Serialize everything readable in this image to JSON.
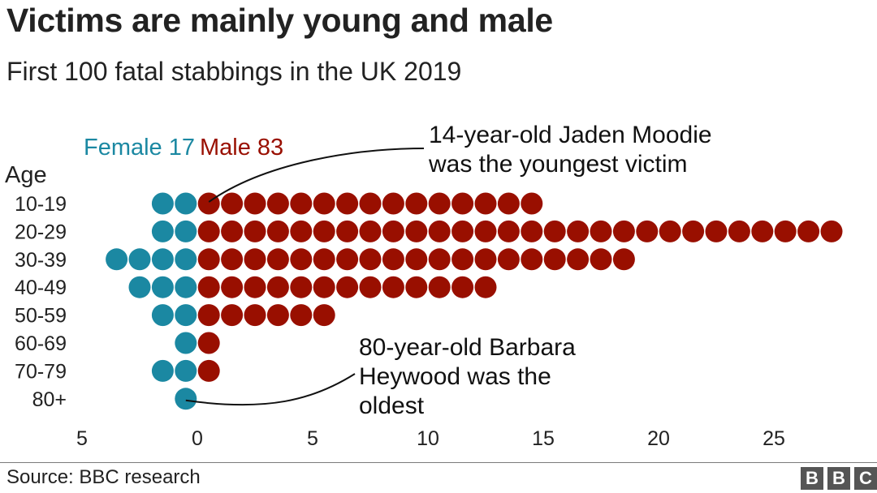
{
  "title": "Victims are mainly young and male",
  "subtitle": "First 100 fatal stabbings in the UK 2019",
  "source": "Source: BBC research",
  "logo": [
    "B",
    "B",
    "C"
  ],
  "colors": {
    "female": "#1b88a2",
    "male": "#990f00",
    "text": "#222222"
  },
  "chart_data": {
    "type": "dot-plot",
    "legend": {
      "female_label": "Female 17",
      "male_label": "Male 83"
    },
    "y_axis_title": "Age",
    "categories": [
      "10-19",
      "20-29",
      "30-39",
      "40-49",
      "50-59",
      "60-69",
      "70-79",
      "80+"
    ],
    "series": [
      {
        "name": "Female",
        "values": [
          2,
          2,
          4,
          3,
          2,
          1,
          2,
          1
        ]
      },
      {
        "name": "Male",
        "values": [
          15,
          28,
          19,
          13,
          6,
          1,
          1,
          0
        ]
      }
    ],
    "x_ticks": [
      {
        "label": "5",
        "value": -5
      },
      {
        "label": "0",
        "value": 0
      },
      {
        "label": "5",
        "value": 5
      },
      {
        "label": "10",
        "value": 10
      },
      {
        "label": "15",
        "value": 15
      },
      {
        "label": "20",
        "value": 20
      },
      {
        "label": "25",
        "value": 25
      }
    ],
    "annotations": [
      {
        "lines": [
          "14-year-old Jaden Moodie",
          "was the youngest victim"
        ],
        "category": "10-19",
        "series": "Male"
      },
      {
        "lines": [
          "80-year-old Barbara",
          "Heywood was the",
          "oldest"
        ],
        "category": "80+",
        "series": "Female"
      }
    ]
  }
}
